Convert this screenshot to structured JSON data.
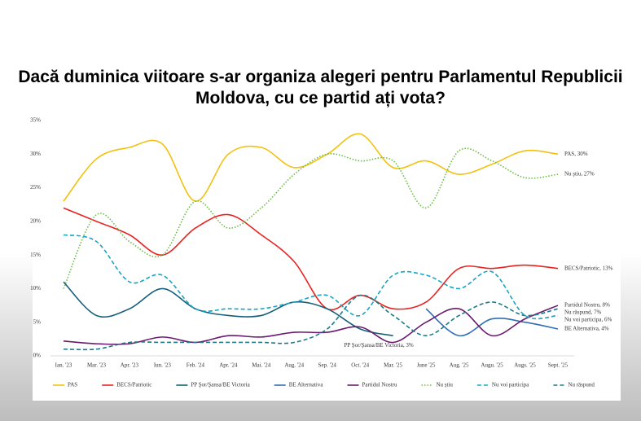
{
  "chart_data": {
    "type": "line",
    "title": "Dacă duminica viitoare s-ar organiza alegeri pentru Parlamentul Republicii Moldova, cu ce partid ați vota?",
    "categories": [
      "Ian. '23",
      "Mar. '23",
      "Apr. '23",
      "Iun. '23",
      "Feb. '24",
      "Apr. '24",
      "Mai. '24",
      "Aug. '24",
      "Sep. '24",
      "Oct. '24",
      "Mar. '25",
      "June '25",
      "Aug. '25",
      "Augu. '25",
      "Augs. '25",
      "Sept. '25"
    ],
    "ylim": [
      0,
      35
    ],
    "yticks": [
      {
        "value": 0,
        "label": "0%"
      },
      {
        "value": 5,
        "label": "5%"
      },
      {
        "value": 10,
        "label": "10%"
      },
      {
        "value": 15,
        "label": "15%"
      },
      {
        "value": 20,
        "label": "20%"
      },
      {
        "value": 25,
        "label": "25%"
      },
      {
        "value": 30,
        "label": "30%"
      },
      {
        "value": 35,
        "label": "35%"
      }
    ],
    "smooth": true,
    "series": [
      {
        "name": "PAS",
        "color": "#f2c10f",
        "dash": "solid",
        "end_label": "PAS, 30%",
        "values": [
          23,
          29.3,
          31,
          31.5,
          23,
          30,
          31,
          28,
          30,
          33,
          28,
          29,
          27,
          28.5,
          30.5,
          30
        ]
      },
      {
        "name": "BECS/Patriotic",
        "color": "#e8231f",
        "dash": "solid",
        "end_label": "BECS/Patriotic, 13%",
        "values": [
          22,
          20,
          18,
          15,
          19,
          21,
          18,
          14,
          7,
          9,
          7,
          8,
          13,
          13,
          13.5,
          13
        ]
      },
      {
        "name": "PP Şor/Şansa/BE Victoria",
        "color": "#17607a",
        "dash": "solid",
        "end_label": "PP Şor/Şansa/BE Victoria, 3%",
        "values": [
          11,
          6,
          7,
          10,
          7,
          6,
          6,
          8,
          7,
          4,
          3,
          null,
          null,
          null,
          null,
          null
        ]
      },
      {
        "name": "BE Alternativa",
        "color": "#2f6eb5",
        "dash": "solid",
        "end_label": "BE Alternativa, 4%",
        "values": [
          null,
          null,
          null,
          null,
          null,
          null,
          null,
          null,
          null,
          null,
          null,
          7,
          3,
          5.5,
          5,
          4
        ]
      },
      {
        "name": "Partidul Nostru",
        "color": "#6a1b6e",
        "dash": "solid",
        "end_label": "Partidul Nostru, 8%",
        "values": [
          2.2,
          1.8,
          1.8,
          2.8,
          2,
          3,
          2.8,
          3.5,
          3.5,
          4.3,
          2,
          5,
          7,
          3,
          5.5,
          7.5
        ]
      },
      {
        "name": "Nu știu",
        "color": "#6bbd45",
        "dash": "dotted",
        "end_label": "Nu știu, 27%",
        "values": [
          10,
          21,
          17,
          15,
          23,
          19,
          22,
          27,
          30,
          29,
          29,
          22,
          30.5,
          29,
          26.5,
          27
        ]
      },
      {
        "name": "Nu voi participa",
        "color": "#1aa3c4",
        "dash": "dashed",
        "end_label": "Nu voi participa, 6%",
        "values": [
          18,
          17,
          11,
          12,
          7,
          7,
          7,
          8,
          9,
          6,
          12,
          12,
          10,
          12.5,
          6,
          6
        ]
      },
      {
        "name": "Nu răspund",
        "color": "#1b7a8c",
        "dash": "dashed",
        "end_label": "Nu răspund, 7%",
        "values": [
          1,
          1,
          2,
          2,
          2,
          2,
          2,
          2,
          4,
          9,
          6,
          3,
          6,
          8,
          6,
          7
        ]
      }
    ]
  }
}
